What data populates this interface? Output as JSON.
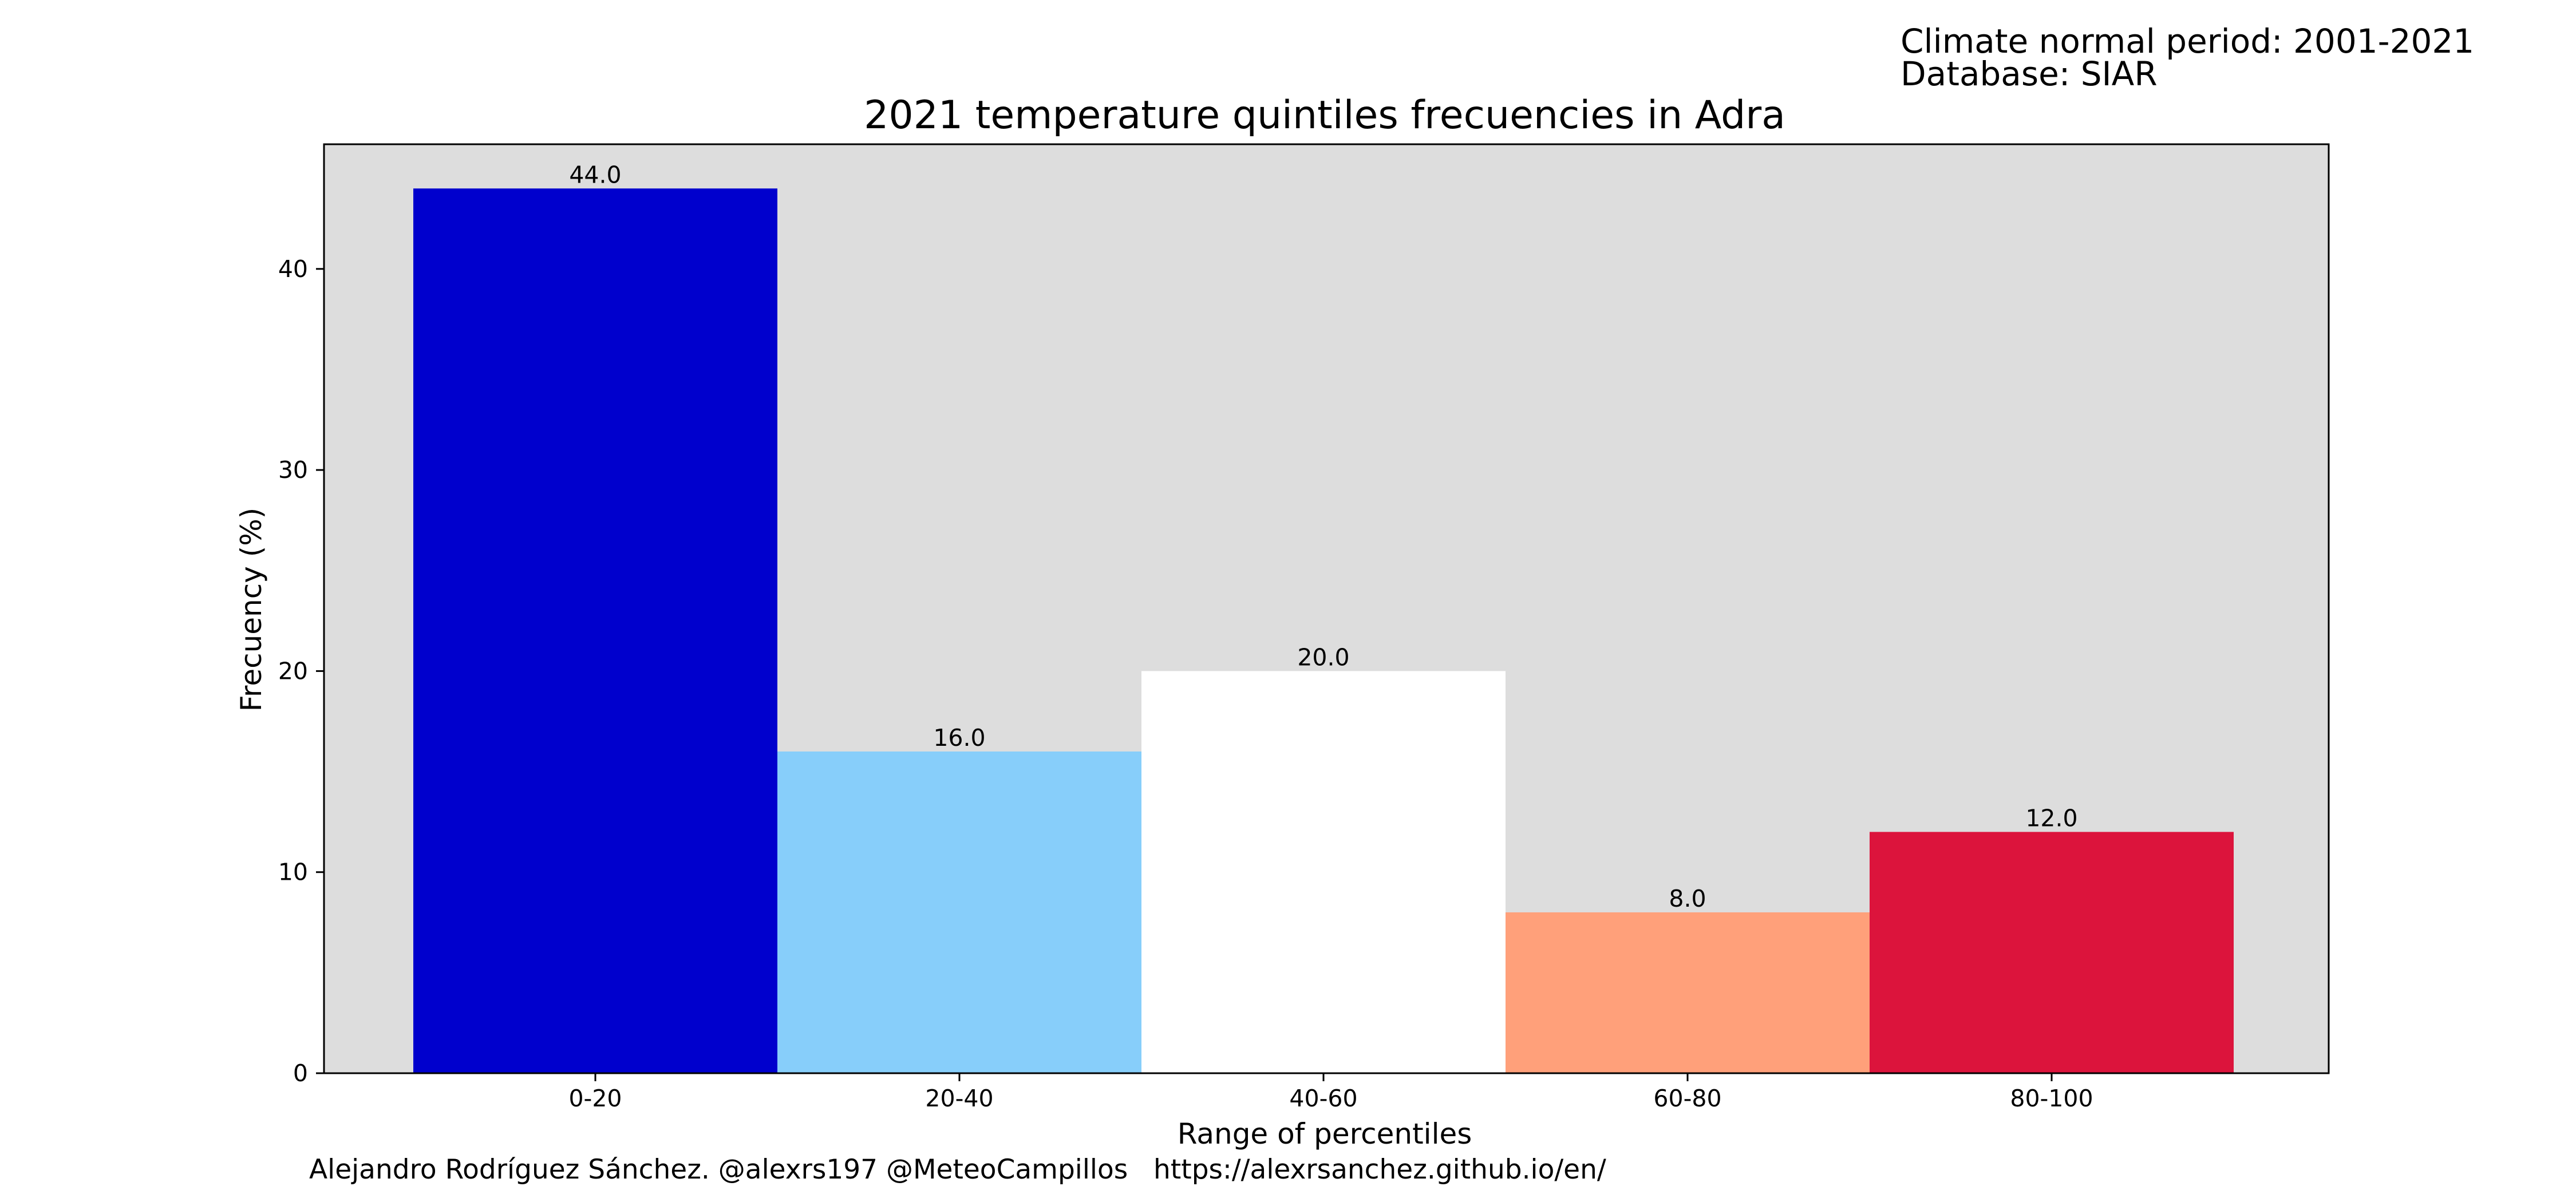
{
  "header_notes": {
    "period": "Climate normal period: 2001-2021",
    "database": "Database: SIAR"
  },
  "credits": {
    "author": "Alejandro Rodríguez Sánchez. @alexrs197 @MeteoCampillos",
    "url": "https://alexrsanchez.github.io/en/"
  },
  "chart_data": {
    "type": "bar",
    "title": "2021 temperature quintiles frecuencies in Adra",
    "xlabel": "Range of percentiles",
    "ylabel": "Frecuency (%)",
    "categories": [
      "0-20",
      "20-40",
      "40-60",
      "60-80",
      "80-100"
    ],
    "values": [
      44.0,
      16.0,
      20.0,
      8.0,
      12.0
    ],
    "value_labels": [
      "44.0",
      "16.0",
      "20.0",
      "8.0",
      "12.0"
    ],
    "bar_colors": [
      "#0000cd",
      "#87cefa",
      "#ffffff",
      "#ffa07a",
      "#dc143c"
    ],
    "plot_background": "#dddddd",
    "yticks": [
      0,
      10,
      20,
      30,
      40
    ],
    "ylim": [
      0,
      46.2
    ],
    "grid": false,
    "legend": "none"
  }
}
